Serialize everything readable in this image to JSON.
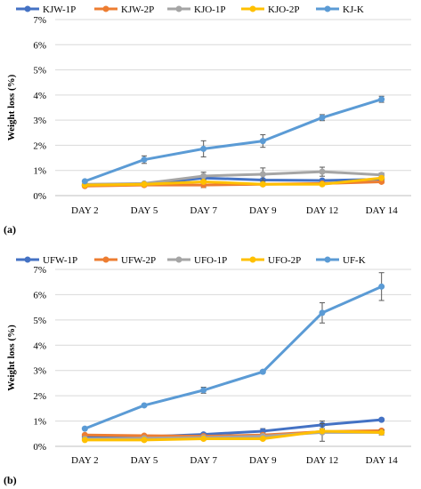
{
  "chart_data": [
    {
      "type": "line",
      "panel_label": "(a)",
      "ylabel": "Weight loss (%)",
      "xlabel": "",
      "categories": [
        "DAY 2",
        "DAY 5",
        "DAY 7",
        "DAY 9",
        "DAY 12",
        "DAY 14"
      ],
      "yticks": [
        "0%",
        "1%",
        "2%",
        "3%",
        "4%",
        "5%",
        "6%",
        "7%"
      ],
      "ylim": [
        0,
        7
      ],
      "grid": true,
      "legend_position": "top",
      "series": [
        {
          "name": "KJW-1P",
          "color": "#4472c4",
          "values": [
            0.4,
            0.45,
            0.7,
            0.62,
            0.6,
            0.65
          ],
          "errors": [
            0,
            0.05,
            0.08,
            0.05,
            0.05,
            0.05
          ]
        },
        {
          "name": "KJW-2P",
          "color": "#ed7d31",
          "values": [
            0.38,
            0.42,
            0.42,
            0.45,
            0.48,
            0.55
          ],
          "errors": [
            0,
            0.05,
            0.1,
            0.05,
            0.05,
            0.05
          ]
        },
        {
          "name": "KJO-1P",
          "color": "#a5a5a5",
          "values": [
            0.45,
            0.48,
            0.78,
            0.85,
            0.95,
            0.82
          ],
          "errors": [
            0,
            0.05,
            0.15,
            0.25,
            0.18,
            0.08
          ]
        },
        {
          "name": "KJO-2P",
          "color": "#ffc000",
          "values": [
            0.42,
            0.45,
            0.55,
            0.45,
            0.45,
            0.7
          ],
          "errors": [
            0,
            0.05,
            0.05,
            0.05,
            0.05,
            0.05
          ]
        },
        {
          "name": "KJ-K",
          "color": "#5b9bd5",
          "values": [
            0.57,
            1.43,
            1.86,
            2.17,
            3.1,
            3.83
          ],
          "errors": [
            0,
            0.15,
            0.32,
            0.25,
            0.12,
            0.12
          ]
        }
      ]
    },
    {
      "type": "line",
      "panel_label": "(b)",
      "ylabel": "Weight loss (%)",
      "xlabel": "",
      "categories": [
        "DAY 2",
        "DAY 5",
        "DAY 7",
        "DAY 9",
        "DAY 12",
        "DAY 14"
      ],
      "yticks": [
        "0%",
        "1%",
        "2%",
        "3%",
        "4%",
        "5%",
        "6%",
        "7%"
      ],
      "ylim": [
        0,
        7
      ],
      "grid": true,
      "legend_position": "top",
      "series": [
        {
          "name": "UFW-1P",
          "color": "#4472c4",
          "values": [
            0.38,
            0.38,
            0.47,
            0.6,
            0.85,
            1.05
          ],
          "errors": [
            0,
            0.05,
            0.05,
            0.1,
            0.15,
            0.05
          ]
        },
        {
          "name": "UFW-2P",
          "color": "#ed7d31",
          "values": [
            0.45,
            0.42,
            0.4,
            0.45,
            0.58,
            0.62
          ],
          "errors": [
            0,
            0.05,
            0.05,
            0.05,
            0.05,
            0.05
          ]
        },
        {
          "name": "UFO-1P",
          "color": "#a5a5a5",
          "values": [
            0.3,
            0.32,
            0.35,
            0.4,
            0.55,
            0.55
          ],
          "errors": [
            0,
            0.05,
            0.05,
            0.05,
            0.35,
            0.1
          ]
        },
        {
          "name": "UFO-2P",
          "color": "#ffc000",
          "values": [
            0.25,
            0.25,
            0.3,
            0.3,
            0.6,
            0.55
          ],
          "errors": [
            0,
            0.05,
            0.05,
            0.05,
            0.05,
            0.05
          ]
        },
        {
          "name": "UF-K",
          "color": "#5b9bd5",
          "values": [
            0.7,
            1.62,
            2.22,
            2.95,
            5.28,
            6.32
          ],
          "errors": [
            0,
            0.05,
            0.12,
            0.05,
            0.4,
            0.55
          ]
        }
      ]
    }
  ]
}
